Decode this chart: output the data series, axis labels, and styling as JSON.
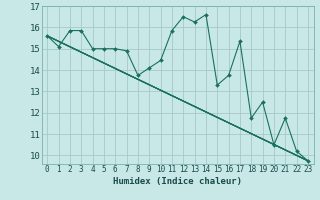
{
  "xlabel": "Humidex (Indice chaleur)",
  "bg_color": "#c8e8e8",
  "grid_color": "#a8c8c8",
  "line_color": "#1a7060",
  "xlim": [
    -0.5,
    23.5
  ],
  "ylim": [
    9.6,
    17.0
  ],
  "yticks": [
    10,
    11,
    12,
    13,
    14,
    15,
    16,
    17
  ],
  "xticks": [
    0,
    1,
    2,
    3,
    4,
    5,
    6,
    7,
    8,
    9,
    10,
    11,
    12,
    13,
    14,
    15,
    16,
    17,
    18,
    19,
    20,
    21,
    22,
    23
  ],
  "zigzag": {
    "x": [
      0,
      1,
      2,
      3,
      4,
      5,
      6,
      7,
      8,
      9,
      10,
      11,
      12,
      13,
      14,
      15,
      16,
      17,
      18,
      19,
      20,
      21,
      22,
      23
    ],
    "y": [
      15.6,
      15.1,
      15.85,
      15.85,
      15.0,
      15.0,
      15.0,
      14.9,
      13.75,
      14.1,
      14.45,
      15.85,
      16.5,
      16.25,
      16.6,
      13.3,
      13.75,
      15.35,
      11.75,
      12.5,
      10.5,
      11.75,
      10.2,
      9.75
    ]
  },
  "straight_lines": [
    {
      "x": [
        0,
        23
      ],
      "y": [
        15.6,
        9.75
      ]
    },
    {
      "x": [
        0,
        23
      ],
      "y": [
        15.6,
        9.75
      ]
    },
    {
      "x": [
        0,
        23
      ],
      "y": [
        15.6,
        9.75
      ]
    },
    {
      "x": [
        0,
        23
      ],
      "y": [
        15.6,
        9.75
      ]
    }
  ]
}
